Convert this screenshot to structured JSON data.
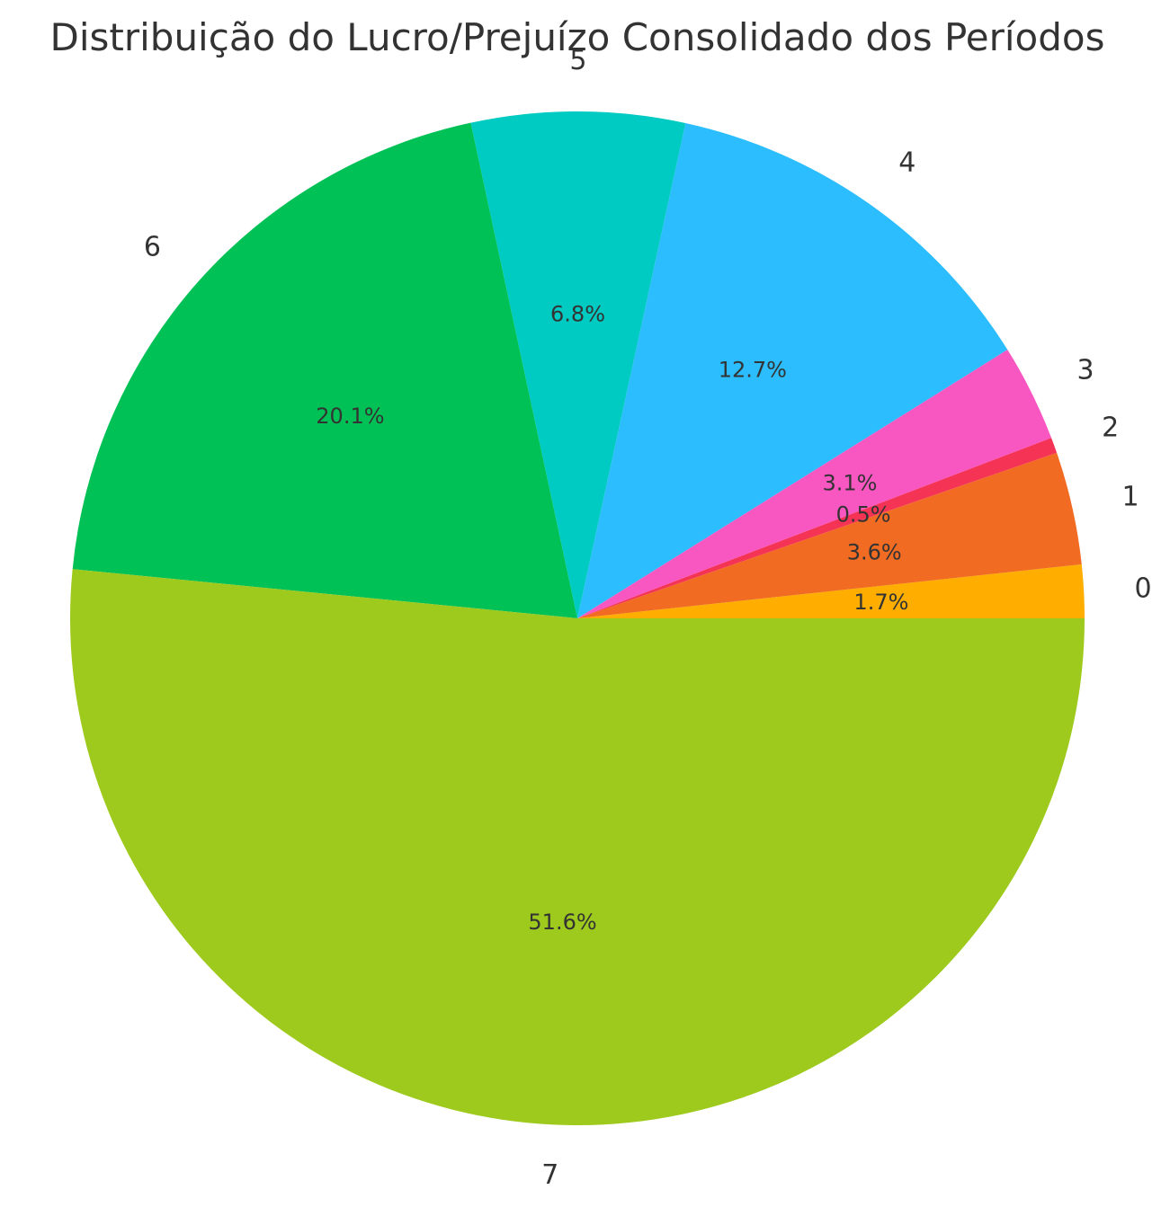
{
  "chart_data": {
    "type": "pie",
    "title": "Distribuição do Lucro/Prejuízo Consolidado dos Períodos",
    "start_angle_deg": 0,
    "direction": "counterclockwise",
    "slices": [
      {
        "label": "0",
        "value": 1.7,
        "pct_label": "1.7%",
        "color": "#FFAE00"
      },
      {
        "label": "1",
        "value": 3.6,
        "pct_label": "3.6%",
        "color": "#F26B22"
      },
      {
        "label": "2",
        "value": 0.5,
        "pct_label": "0.5%",
        "color": "#F53355"
      },
      {
        "label": "3",
        "value": 3.1,
        "pct_label": "3.1%",
        "color": "#F857C1"
      },
      {
        "label": "4",
        "value": 12.7,
        "pct_label": "12.7%",
        "color": "#2BBDFE"
      },
      {
        "label": "5",
        "value": 6.8,
        "pct_label": "6.8%",
        "color": "#00CBC2"
      },
      {
        "label": "6",
        "value": 20.1,
        "pct_label": "20.1%",
        "color": "#00C155"
      },
      {
        "label": "7",
        "value": 51.6,
        "pct_label": "51.6%",
        "color": "#9ECA1D"
      }
    ]
  }
}
